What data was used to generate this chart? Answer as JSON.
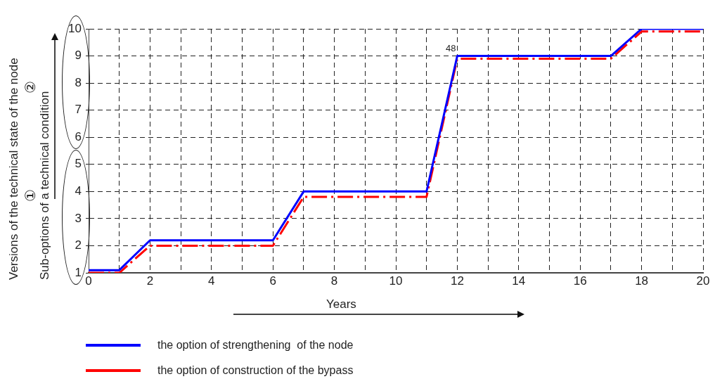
{
  "chart_data": {
    "type": "line",
    "xlabel": "Years",
    "ylabel": "Versions of the technical state of the node\nSub-options of a technical condition",
    "xlim": [
      0,
      20
    ],
    "ylim": [
      1,
      10
    ],
    "xticks": [
      0,
      {
        "value": 1,
        "label": null
      },
      2,
      {
        "value": 3,
        "label": null
      },
      4,
      {
        "value": 5,
        "label": null
      },
      6,
      {
        "value": 7,
        "label": null
      },
      8,
      {
        "value": 9,
        "label": null
      },
      10,
      {
        "value": 11,
        "label": null
      },
      12,
      {
        "value": 13,
        "label": null
      },
      14,
      {
        "value": 15,
        "label": null
      },
      16,
      {
        "value": 17,
        "label": null
      },
      18,
      {
        "value": 19,
        "label": null
      },
      20
    ],
    "yticks": [
      1,
      2,
      3,
      4,
      5,
      6,
      7,
      8,
      9,
      10
    ],
    "grid": true,
    "legend": "bottom",
    "marker": "none",
    "series": [
      {
        "name": "the option of strengthening  of the node",
        "color": "#0000ff",
        "line_style": "solid",
        "x": [
          0,
          1,
          2,
          6,
          7,
          11,
          12,
          17,
          18,
          20
        ],
        "values": [
          1.1,
          1.1,
          2.2,
          2.2,
          4,
          4,
          9,
          9,
          10,
          10
        ]
      },
      {
        "name": "the option of construction of the bypass",
        "color": "#ff0000",
        "line_style": "dashed",
        "x": [
          0,
          1,
          2,
          6,
          7,
          11,
          12,
          17,
          18,
          20
        ],
        "values": [
          1,
          1,
          2,
          2,
          3.8,
          3.8,
          8.9,
          8.9,
          9.9,
          9.9
        ]
      }
    ],
    "annotations": [
      {
        "text": "48",
        "x": 12,
        "y": 9
      },
      "①",
      "②"
    ]
  }
}
